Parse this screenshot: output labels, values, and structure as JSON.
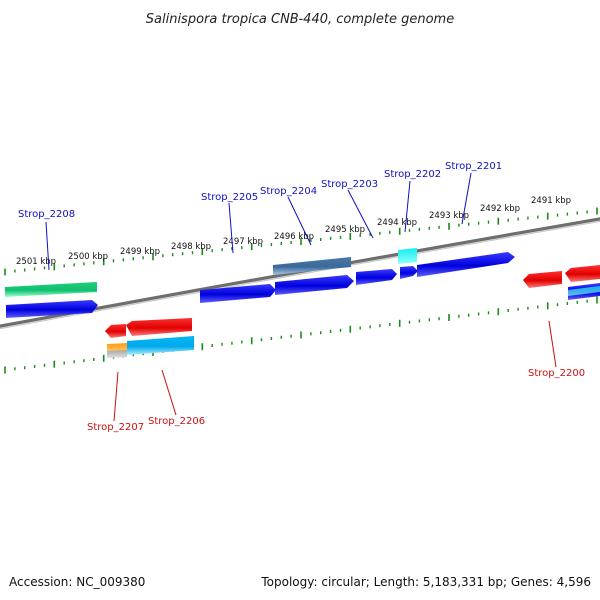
{
  "title": "Salinispora tropica CNB-440, complete genome",
  "footer": {
    "accession": "Accession: NC_009380",
    "summary": "Topology: circular; Length: 5,183,331 bp; Genes: 4,596"
  },
  "colors": {
    "forward_label": "#1010c0",
    "reverse_label": "#cc1010",
    "tick": "#1a8a1a",
    "backbone": "#808080"
  },
  "scale_labels": [
    "2501 kbp",
    "2500 kbp",
    "2499 kbp",
    "2498 kbp",
    "2497 kbp",
    "2496 kbp",
    "2495 kbp",
    "2494 kbp",
    "2493 kbp",
    "2492 kbp",
    "2491 kbp"
  ],
  "gene_labels": {
    "forward": [
      "Strop_2208",
      "Strop_2205",
      "Strop_2204",
      "Strop_2203",
      "Strop_2202",
      "Strop_2201"
    ],
    "reverse": [
      "Strop_2207",
      "Strop_2206",
      "Strop_2200"
    ]
  }
}
